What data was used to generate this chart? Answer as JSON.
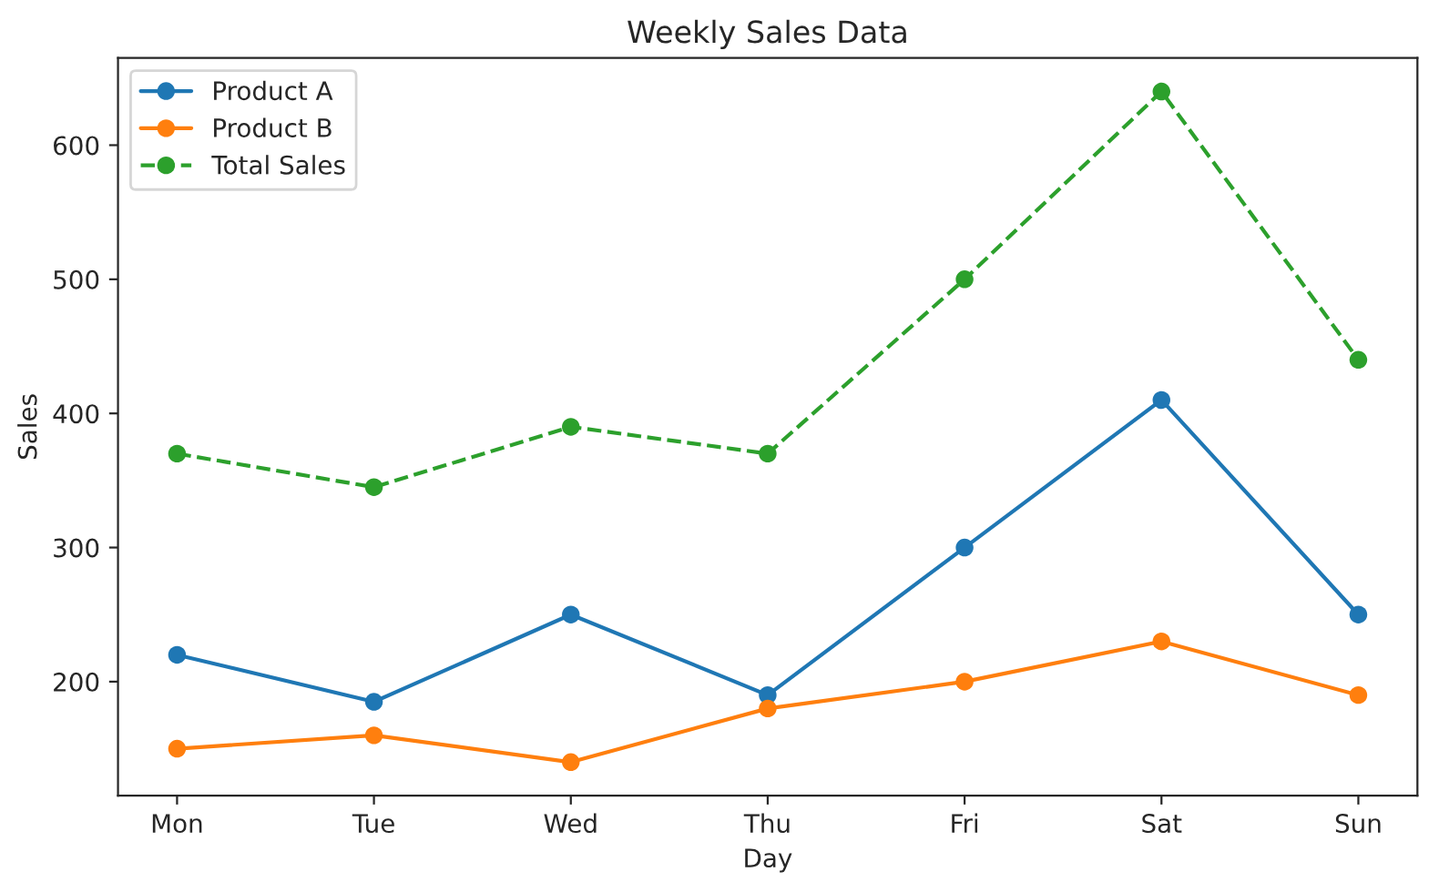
{
  "chart_data": {
    "type": "line",
    "title": "Weekly Sales Data",
    "xlabel": "Day",
    "ylabel": "Sales",
    "categories": [
      "Mon",
      "Tue",
      "Wed",
      "Thu",
      "Fri",
      "Sat",
      "Sun"
    ],
    "series": [
      {
        "name": "Product A",
        "color": "#1f77b4",
        "values": [
          220,
          185,
          250,
          190,
          300,
          410,
          250
        ],
        "marker": "circle",
        "line_style": "solid"
      },
      {
        "name": "Product B",
        "color": "#ff7f0e",
        "values": [
          150,
          160,
          140,
          180,
          200,
          230,
          190
        ],
        "marker": "circle",
        "line_style": "solid"
      },
      {
        "name": "Total Sales",
        "color": "#2ca02c",
        "values": [
          370,
          345,
          390,
          370,
          500,
          640,
          440
        ],
        "marker": "circle",
        "line_style": "dashed"
      }
    ],
    "ylim": [
      115,
      665
    ],
    "yticks": [
      200,
      300,
      400,
      500,
      600
    ],
    "grid": false,
    "legend": "top left"
  }
}
